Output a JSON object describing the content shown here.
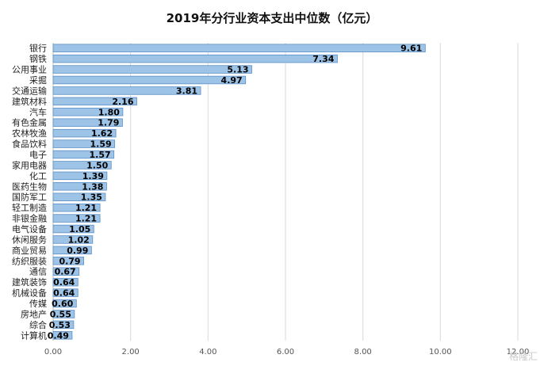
{
  "chart_data": {
    "type": "bar",
    "orientation": "horizontal",
    "title": "2019年分行业资本支出中位数（亿元）",
    "categories": [
      "银行",
      "钢铁",
      "公用事业",
      "采掘",
      "交通运输",
      "建筑材料",
      "汽车",
      "有色金属",
      "农林牧渔",
      "食品饮料",
      "电子",
      "家用电器",
      "化工",
      "医药生物",
      "国防军工",
      "轻工制造",
      "非银金融",
      "电气设备",
      "休闲服务",
      "商业贸易",
      "纺织服装",
      "通信",
      "建筑装饰",
      "机械设备",
      "传媒",
      "房地产",
      "综合",
      "计算机"
    ],
    "values": [
      9.61,
      7.34,
      5.13,
      4.97,
      3.81,
      2.16,
      1.8,
      1.79,
      1.62,
      1.59,
      1.57,
      1.5,
      1.39,
      1.38,
      1.35,
      1.21,
      1.21,
      1.05,
      1.02,
      0.99,
      0.79,
      0.67,
      0.64,
      0.64,
      0.6,
      0.55,
      0.53,
      0.49
    ],
    "value_labels": [
      "9.61",
      "7.34",
      "5.13",
      "4.97",
      "3.81",
      "2.16",
      "1.80",
      "1.79",
      "1.62",
      "1.59",
      "1.57",
      "1.50",
      "1.39",
      "1.38",
      "1.35",
      "1.21",
      "1.21",
      "1.05",
      "1.02",
      "0.99",
      "0.79",
      "0.67",
      "0.64",
      "0.64",
      "0.60",
      "0.55",
      "0.53",
      "0.49"
    ],
    "x_ticks": [
      "0.00",
      "2.00",
      "4.00",
      "6.00",
      "8.00",
      "10.00",
      "12.00"
    ],
    "xlim": [
      0,
      12
    ],
    "grid": true,
    "bar_color": "#9dc3e6",
    "bar_stroke": "#5b8fc7"
  },
  "watermark": "格隆汇"
}
